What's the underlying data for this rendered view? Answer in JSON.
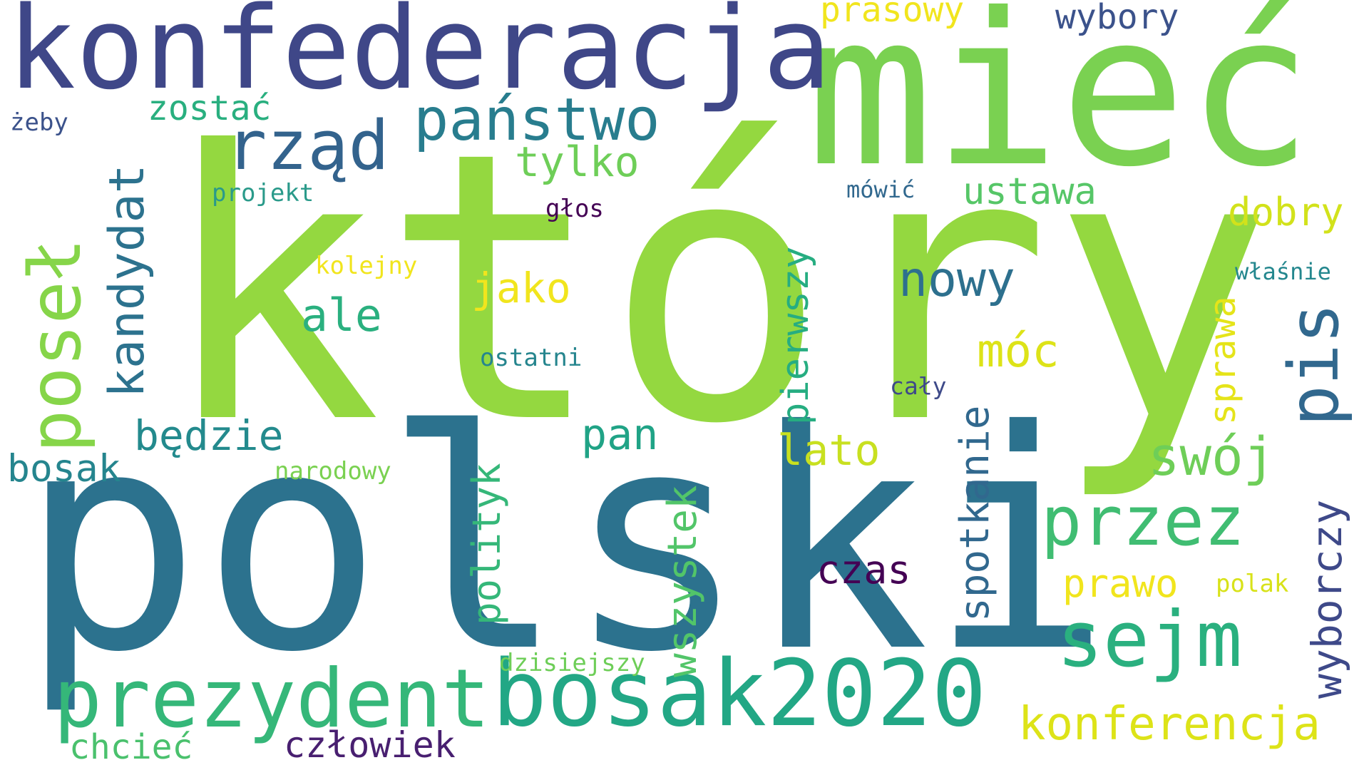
{
  "words": [
    {
      "text": "który",
      "color": "#94d840"
    },
    {
      "text": "polski",
      "color": "#2c728e"
    },
    {
      "text": "mieć",
      "color": "#7ad151"
    },
    {
      "text": "konfederacja",
      "color": "#3f4788"
    },
    {
      "text": "bosak2020",
      "color": "#22a785"
    },
    {
      "text": "prezydent",
      "color": "#35b779"
    },
    {
      "text": "sejm",
      "color": "#2ab07f"
    },
    {
      "text": "rząd",
      "color": "#33638d"
    },
    {
      "text": "państwo",
      "color": "#287d8e"
    },
    {
      "text": "przez",
      "color": "#40bd72"
    },
    {
      "text": "konferencja",
      "color": "#dde318"
    },
    {
      "text": "swój",
      "color": "#6ece58"
    },
    {
      "text": "nowy",
      "color": "#2d708e"
    },
    {
      "text": "jako",
      "color": "#f1e51d"
    },
    {
      "text": "ale",
      "color": "#2ab07f"
    },
    {
      "text": "będzie",
      "color": "#238a8d"
    },
    {
      "text": "pan",
      "color": "#20a386"
    },
    {
      "text": "lato",
      "color": "#c8e020"
    },
    {
      "text": "móc",
      "color": "#dde318"
    },
    {
      "text": "czas",
      "color": "#440154"
    },
    {
      "text": "prawo",
      "color": "#f1e51d"
    },
    {
      "text": "dobry",
      "color": "#d2e21b"
    },
    {
      "text": "tylko",
      "color": "#6ece58"
    },
    {
      "text": "ustawa",
      "color": "#56c667"
    },
    {
      "text": "bosak",
      "color": "#25858e"
    },
    {
      "text": "człowiek",
      "color": "#481f70"
    },
    {
      "text": "chcieć",
      "color": "#4ac16d"
    },
    {
      "text": "zostać",
      "color": "#29af7f"
    },
    {
      "text": "wybory",
      "color": "#3b528b"
    },
    {
      "text": "prasowy",
      "color": "#f1e51d"
    },
    {
      "text": "projekt",
      "color": "#2a9a8a"
    },
    {
      "text": "mówić",
      "color": "#31688e"
    },
    {
      "text": "głos",
      "color": "#440154"
    },
    {
      "text": "kolejny",
      "color": "#f1e51d"
    },
    {
      "text": "ostatni",
      "color": "#25858e"
    },
    {
      "text": "cały",
      "color": "#3e4a89"
    },
    {
      "text": "narodowy",
      "color": "#7ad151"
    },
    {
      "text": "dzisiejszy",
      "color": "#6ece58"
    },
    {
      "text": "polak",
      "color": "#d8e219"
    },
    {
      "text": "właśnie",
      "color": "#24878e"
    },
    {
      "text": "żeby",
      "color": "#3b528b"
    },
    {
      "text": "poseł",
      "color": "#86d549"
    },
    {
      "text": "kandydat",
      "color": "#2c728e"
    },
    {
      "text": "polityk",
      "color": "#35b779"
    },
    {
      "text": "wszystek",
      "color": "#52c569"
    },
    {
      "text": "pierwszy",
      "color": "#26ad81"
    },
    {
      "text": "spotkanie",
      "color": "#31688e"
    },
    {
      "text": "sprawa",
      "color": "#e5e419"
    },
    {
      "text": "pis",
      "color": "#31688e"
    },
    {
      "text": "wyborczy",
      "color": "#3e4989"
    }
  ]
}
